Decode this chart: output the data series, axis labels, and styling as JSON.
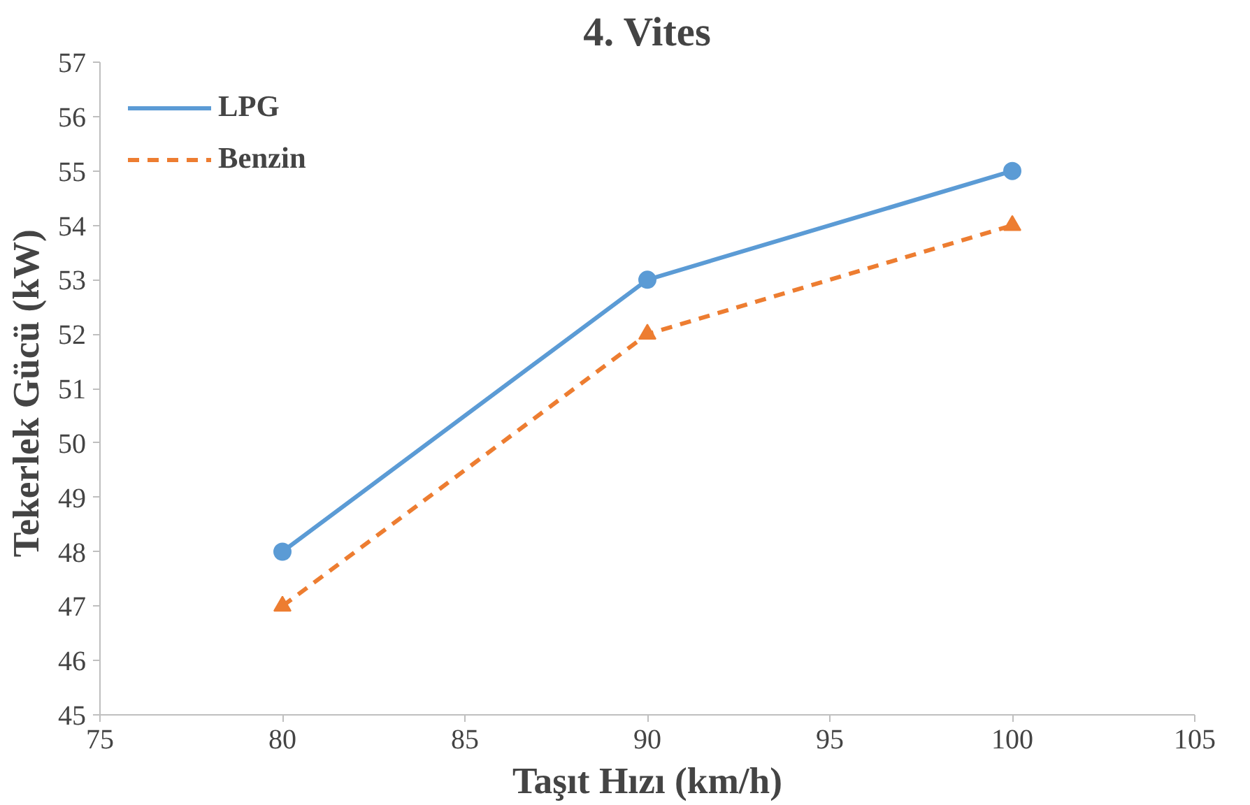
{
  "chart_data": {
    "type": "line",
    "title": "4. Vites",
    "xlabel": "Taşıt Hızı (km/h)",
    "ylabel": "Tekerlek  Gücü (kW)",
    "x": [
      80,
      90,
      100
    ],
    "series": [
      {
        "name": "LPG",
        "color": "#5b9bd5",
        "values": [
          48,
          53,
          55
        ],
        "marker": "circle",
        "line_style": "solid"
      },
      {
        "name": "Benzin",
        "color": "#ed7d31",
        "values": [
          47,
          52,
          54
        ],
        "marker": "triangle",
        "line_style": "dashed"
      }
    ],
    "xlim": [
      75,
      105
    ],
    "xticks": [
      75,
      80,
      85,
      90,
      95,
      100,
      105
    ],
    "ylim": [
      45,
      57
    ],
    "yticks": [
      45,
      46,
      47,
      48,
      49,
      50,
      51,
      52,
      53,
      54,
      55,
      56,
      57
    ],
    "grid": false,
    "legend": "top left"
  }
}
